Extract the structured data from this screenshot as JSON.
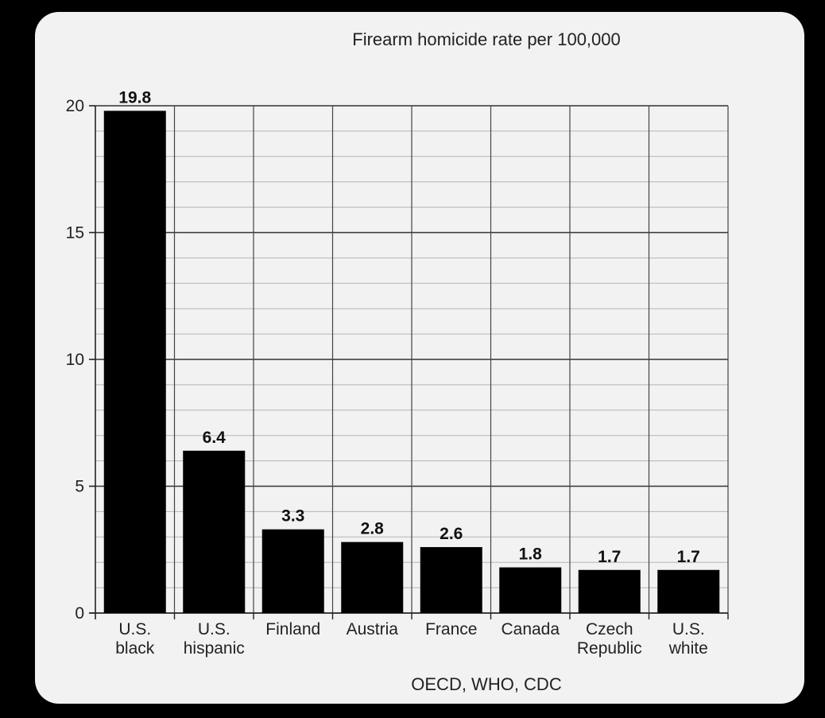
{
  "chart_data": {
    "type": "bar",
    "title": "Firearm homicide rate per 100,000",
    "source": "OECD, WHO, CDC",
    "xlabel": "",
    "ylabel": "",
    "ylim": [
      0,
      20
    ],
    "yticks": [
      0,
      5,
      10,
      15,
      20
    ],
    "grid": true,
    "legend": "none",
    "categories": [
      [
        "U.S.",
        "black"
      ],
      [
        "U.S.",
        "hispanic"
      ],
      [
        "Finland"
      ],
      [
        "Austria"
      ],
      [
        "France"
      ],
      [
        "Canada"
      ],
      [
        "Czech",
        "Republic"
      ],
      [
        "U.S.",
        "white"
      ]
    ],
    "values": [
      19.8,
      6.4,
      3.3,
      2.8,
      2.6,
      1.8,
      1.7,
      1.7
    ],
    "value_labels": [
      "19.8",
      "6.4",
      "3.3",
      "2.8",
      "2.6",
      "1.8",
      "1.7",
      "1.7"
    ],
    "colors": {
      "bar": "#000000",
      "grid": "#999999",
      "axis": "#222222",
      "background": "#f2f2f2"
    }
  }
}
